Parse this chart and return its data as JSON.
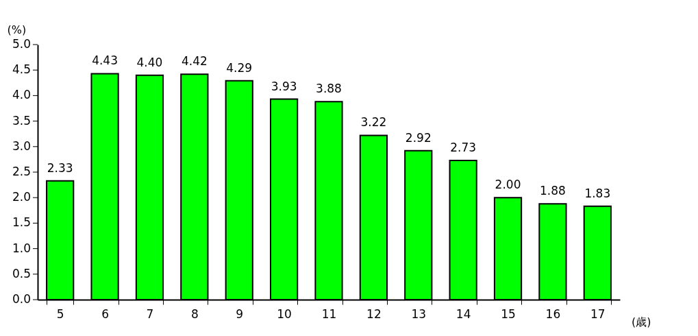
{
  "chart_data": {
    "type": "bar",
    "categories": [
      "5",
      "6",
      "7",
      "8",
      "9",
      "10",
      "11",
      "12",
      "13",
      "14",
      "15",
      "16",
      "17"
    ],
    "values": [
      2.33,
      4.43,
      4.4,
      4.42,
      4.29,
      3.93,
      3.88,
      3.22,
      2.92,
      2.73,
      2.0,
      1.88,
      1.83
    ],
    "color": "#00ff00",
    "ylabel": "(%)",
    "xlabel": "(歳)",
    "ylim": [
      0,
      5
    ],
    "yticks": [
      {
        "value": 0,
        "label": "0.0"
      },
      {
        "value": 0.5,
        "label": "0.5"
      },
      {
        "value": 1,
        "label": "1.0"
      },
      {
        "value": 1.5,
        "label": "1.5"
      },
      {
        "value": 2,
        "label": "2.0"
      },
      {
        "value": 2.5,
        "label": "2.5"
      },
      {
        "value": 3,
        "label": "3.0"
      },
      {
        "value": 3.5,
        "label": "3.5"
      },
      {
        "value": 4,
        "label": "4.0"
      },
      {
        "value": 4.5,
        "label": "4.5"
      },
      {
        "value": 5,
        "label": "5.0"
      }
    ],
    "value_labels": [
      "2.33",
      "4.43",
      "4.40",
      "4.42",
      "4.29",
      "3.93",
      "3.88",
      "3.22",
      "2.92",
      "2.73",
      "2.00",
      "1.88",
      "1.83"
    ],
    "grid": false
  }
}
